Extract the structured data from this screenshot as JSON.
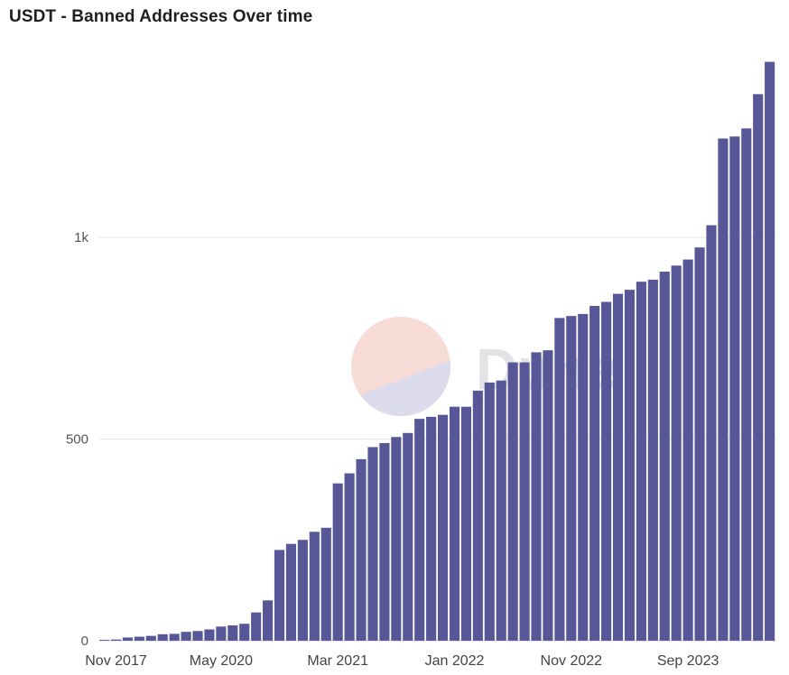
{
  "chart_data": {
    "type": "bar",
    "title": "USDT - Banned Addresses Over time",
    "xlabel": "",
    "ylabel": "",
    "ylim": [
      0,
      1450
    ],
    "y_ticks": [
      0,
      500,
      1000
    ],
    "y_tick_labels": [
      "0",
      "500",
      "1k"
    ],
    "x_tick_labels": [
      "Nov 2017",
      "May 2020",
      "Mar 2021",
      "Jan 2022",
      "Nov 2022",
      "Sep 2023"
    ],
    "x_tick_indices": [
      1,
      10,
      20,
      30,
      40,
      50
    ],
    "bar_color": "#575797",
    "grid": true,
    "watermark": "Dune",
    "values": [
      2,
      3,
      8,
      10,
      12,
      16,
      17,
      22,
      24,
      28,
      35,
      38,
      42,
      70,
      100,
      225,
      240,
      250,
      270,
      280,
      390,
      415,
      450,
      480,
      490,
      505,
      515,
      550,
      555,
      560,
      580,
      580,
      620,
      640,
      645,
      690,
      690,
      715,
      720,
      800,
      805,
      810,
      830,
      840,
      860,
      870,
      890,
      895,
      915,
      930,
      945,
      975,
      1030,
      1245,
      1250,
      1270,
      1355,
      1435
    ]
  }
}
